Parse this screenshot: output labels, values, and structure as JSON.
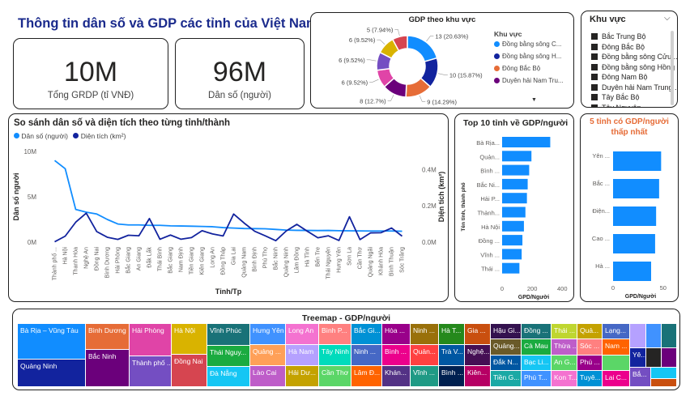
{
  "title": "Thông tin dân số và GDP các tỉnh của Việt Nam",
  "kpi": [
    {
      "value": "10M",
      "label": "Tổng GRDP (tỉ VNĐ)"
    },
    {
      "value": "96M",
      "label": "Dân số (người)"
    }
  ],
  "donut": {
    "title": "GDP theo khu vực",
    "legend_title": "Khu vực",
    "slices": [
      {
        "label": "13 (20.63%)",
        "value": 13,
        "color": "#118DFF"
      },
      {
        "label": "10 (15.87%)",
        "value": 10,
        "color": "#12239E"
      },
      {
        "label": "9 (14.29%)",
        "value": 9,
        "color": "#E66C37"
      },
      {
        "label": "8 (12.7%)",
        "value": 8,
        "color": "#6B007B"
      },
      {
        "label": "6 (9.52%)",
        "value": 6,
        "color": "#E044A7"
      },
      {
        "label": "6 (9.52%)",
        "value": 6,
        "color": "#744EC2"
      },
      {
        "label": "6 (9.52%)",
        "value": 6,
        "color": "#D9B300"
      },
      {
        "label": "5 (7.94%)",
        "value": 5,
        "color": "#D64550"
      }
    ],
    "legend": [
      {
        "label": "Đồng bằng sông C...",
        "color": "#118DFF"
      },
      {
        "label": "Đồng bằng sông H...",
        "color": "#12239E"
      },
      {
        "label": "Đông Bắc Bộ",
        "color": "#E66C37"
      },
      {
        "label": "Duyên hải Nam Tru...",
        "color": "#6B007B"
      }
    ]
  },
  "slicer": {
    "title": "Khu vực",
    "items": [
      "Bắc Trung Bộ",
      "Đông Bắc Bộ",
      "Đồng bằng sông Cửu ...",
      "Đồng bằng sông Hồng",
      "Đông Nam Bộ",
      "Duyên hải Nam Trung ...",
      "Tây Bắc Bộ",
      "Tây Nguyên"
    ]
  },
  "combo": {
    "title": "So sánh dân số và diện tích theo từng tỉnh/thành",
    "legend": [
      {
        "label": "Dân số (người)",
        "color": "#118DFF"
      },
      {
        "label": "Diện tích (km²)",
        "color": "#12239E"
      }
    ],
    "y_left_label": "Dân số người",
    "y_right_label": "Diện tích (km²)",
    "x_label": "Tỉnh/Tp",
    "y_left_ticks": [
      "10M",
      "5M",
      "0M"
    ],
    "y_right_ticks": [
      "0.4M",
      "0.2M",
      "0.0M"
    ]
  },
  "chart_data": [
    {
      "type": "line",
      "title": "So sánh dân số và diện tích theo từng tỉnh/thành",
      "xlabel": "Tỉnh/Tp",
      "ylabel": "Dân số người",
      "y2label": "Diện tích (km²)",
      "ylim": [
        0,
        10000000
      ],
      "y2lim": [
        0,
        500000
      ],
      "x": [
        "Thành phố ...",
        "Hà Nội",
        "Thanh Hóa",
        "Nghệ An",
        "Đồng Nai",
        "Bình Dương",
        "Hải Phòng",
        "Bắc Giang",
        "An Giang",
        "Đắk Lắk",
        "Thái Bình",
        "Bắc Giang",
        "Nam Định",
        "Tiền Giang",
        "Kiên Giang",
        "Long An",
        "Đồng Tháp",
        "Gia Lai",
        "Quảng Nam",
        "Bình Định",
        "Phú Thọ",
        "Bắc Ninh",
        "Quảng Ninh",
        "Lâm Đồng",
        "Hà Tĩnh",
        "Bến Tre",
        "Thái Nguyên",
        "Hưng Yên",
        "Sơn La",
        "Cần Thơ",
        "Quảng Ngãi",
        "Khánh Hòa",
        "Bình Thuận",
        "Sóc Trăng"
      ],
      "series": [
        {
          "name": "Dân số (người)",
          "values": [
            9000000,
            8100000,
            3600000,
            3300000,
            3100000,
            2500000,
            2000000,
            1900000,
            1900000,
            1850000,
            1850000,
            1800000,
            1780000,
            1760000,
            1730000,
            1700000,
            1600000,
            1550000,
            1500000,
            1490000,
            1470000,
            1400000,
            1330000,
            1300000,
            1290000,
            1280000,
            1290000,
            1260000,
            1250000,
            1240000,
            1230000,
            1230000,
            1230000,
            1200000
          ]
        },
        {
          "name": "Diện tích (km²)",
          "values": [
            2100,
            33000,
            110000,
            160000,
            58000,
            27000,
            15000,
            38000,
            35000,
            130000,
            16000,
            39000,
            16000,
            25000,
            63000,
            45000,
            34000,
            155000,
            105000,
            60000,
            35000,
            8000,
            62000,
            98000,
            60000,
            24000,
            35000,
            9000,
            140000,
            14000,
            51000,
            52000,
            78000,
            33000
          ]
        }
      ]
    },
    {
      "type": "bar",
      "title": "Top 10 tỉnh về GDP/người",
      "ylabel": "Tên tỉnh, thành phố",
      "xlabel": "GPD/Người",
      "x_ticks": [
        "0",
        "200",
        "400"
      ],
      "xlim": [
        0,
        420
      ],
      "categories": [
        "Bà Rịa...",
        "Quản...",
        "Bình ...",
        "Bắc Ni...",
        "Hải P...",
        "Thành...",
        "Hà Nội",
        "Đồng ...",
        "Vĩnh ...",
        "Thái ..."
      ],
      "values": [
        320,
        195,
        180,
        170,
        165,
        155,
        145,
        135,
        130,
        115
      ]
    },
    {
      "type": "bar",
      "title": "5 tỉnh có GDP/người thấp nhất",
      "xlabel": "GPD/Người",
      "x_ticks": [
        "0",
        "50"
      ],
      "xlim": [
        0,
        55
      ],
      "categories": [
        "Yên ...",
        "Bắc ...",
        "Điện...",
        "Cao ...",
        "Hà ..."
      ],
      "values": [
        48,
        46,
        43,
        42,
        38
      ]
    }
  ],
  "top10": {
    "title": "Top 10 tỉnh về GDP/người",
    "ylabel": "Tên tỉnh, thành phố",
    "xlabel": "GPD/Người"
  },
  "bottom5": {
    "title_line1": "5 tỉnh có GDP/người",
    "title_line2": "thấp nhất",
    "xlabel": "GPD/Người"
  },
  "treemap": {
    "title": "Treemap - GDP/người",
    "cells": [
      {
        "label": "Bà Rịa – Vũng Tàu",
        "color": "#118DFF"
      },
      {
        "label": "Quảng Ninh",
        "color": "#12239E"
      },
      {
        "label": "Bình Dương",
        "color": "#E66C37"
      },
      {
        "label": "Bắc Ninh",
        "color": "#6B007B"
      },
      {
        "label": "Hải Phòng",
        "color": "#E044A7"
      },
      {
        "label": "Thành phố ...",
        "color": "#744EC2"
      },
      {
        "label": "Hà Nội",
        "color": "#D9B300"
      },
      {
        "label": "Đồng Nai",
        "color": "#D64550"
      },
      {
        "label": "Vĩnh Phúc",
        "color": "#197278"
      },
      {
        "label": "Thái Nguy...",
        "color": "#1AAB40"
      },
      {
        "label": "Đà Nẵng",
        "color": "#15C6F4"
      },
      {
        "label": "Hưng Yên",
        "color": "#4092FF"
      },
      {
        "label": "Quảng ...",
        "color": "#FFA058"
      },
      {
        "label": "Lào Cai",
        "color": "#BE5DC9"
      },
      {
        "label": "Long An",
        "color": "#F472D0"
      },
      {
        "label": "Hà Nam",
        "color": "#B5A1FF"
      },
      {
        "label": "Hải Dư...",
        "color": "#C4A200"
      },
      {
        "label": "Bình P...",
        "color": "#FF8080"
      },
      {
        "label": "Tây Ninh",
        "color": "#00DBBC"
      },
      {
        "label": "Cần Thơ",
        "color": "#5BD667"
      },
      {
        "label": "Bắc Gi...",
        "color": "#0091D5"
      },
      {
        "label": "Ninh ...",
        "color": "#4668C5"
      },
      {
        "label": "Lâm Đ...",
        "color": "#FF6300"
      },
      {
        "label": "Hòa ...",
        "color": "#99008A"
      },
      {
        "label": "Bình ...",
        "color": "#EC008C"
      },
      {
        "label": "Khán...",
        "color": "#533285"
      },
      {
        "label": "Ninh ...",
        "color": "#99700A"
      },
      {
        "label": "Quản...",
        "color": "#FF4141"
      },
      {
        "label": "Vĩnh ...",
        "color": "#1F9A85"
      },
      {
        "label": "Hà T...",
        "color": "#25891C"
      },
      {
        "label": "Trà V...",
        "color": "#0057A2"
      },
      {
        "label": "Bình ...",
        "color": "#002050"
      },
      {
        "label": "Gia ...",
        "color": "#C94F0F"
      },
      {
        "label": "Nghệ...",
        "color": "#450F54"
      },
      {
        "label": "Kiên...",
        "color": "#B60064"
      },
      {
        "label": "Hậu Gi...",
        "color": "#34124F"
      },
      {
        "label": "Quảng...",
        "color": "#6A5A29"
      },
      {
        "label": "Tiền G...",
        "color": "#1BA9A5"
      },
      {
        "label": "Đồng ...",
        "color": "#197278"
      },
      {
        "label": "Cà Mau",
        "color": "#1AAB40"
      },
      {
        "label": "Bạc Li...",
        "color": "#15C6F4"
      },
      {
        "label": "Phú T...",
        "color": "#4092FF"
      },
      {
        "label": "Thái ...",
        "color": "#BFD630"
      },
      {
        "label": "Thừa ...",
        "color": "#BE5DC9"
      },
      {
        "label": "Kon T...",
        "color": "#F472D0"
      },
      {
        "label": "Quả...",
        "color": "#C4A200"
      },
      {
        "label": "Sóc ...",
        "color": "#FF8080"
      },
      {
        "label": "An G...",
        "color": "#5BD667"
      },
      {
        "label": "Tuyê...",
        "color": "#0091D5"
      },
      {
        "label": "Lạng...",
        "color": "#4668C5"
      },
      {
        "label": "Nam ...",
        "color": "#FF6300"
      },
      {
        "label": "Phú ...",
        "color": "#99008A"
      },
      {
        "label": "Lai C...",
        "color": "#EC008C"
      },
      {
        "label": "Yê...",
        "color": "#533285"
      },
      {
        "label": "Bắ...",
        "color": "#99700A"
      },
      {
        "label": "Đắk N...",
        "color": "#0057A2"
      }
    ]
  }
}
